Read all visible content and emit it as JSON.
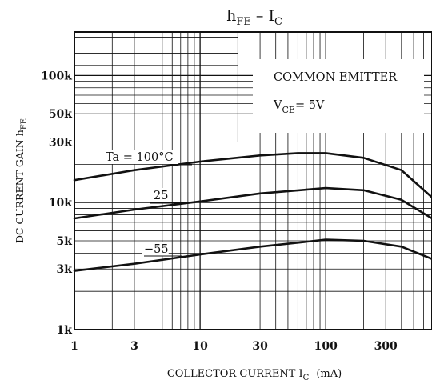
{
  "chart_data": {
    "type": "line",
    "title": {
      "main": "h",
      "main_sub": "FE",
      "sep": " – ",
      "second": "I",
      "second_sub": "C"
    },
    "ylabel": {
      "main": "DC CURRENT GAIN h",
      "sub": "FE"
    },
    "xlabel": {
      "main": "COLLECTOR CURRENT  I",
      "sub": "C",
      "unit": "(mA)"
    },
    "x_scale": "log",
    "y_scale": "log",
    "xlim": [
      1,
      700
    ],
    "ylim": [
      1000,
      220000
    ],
    "x_ticks": [
      {
        "value": 1,
        "label": "1"
      },
      {
        "value": 3,
        "label": "3"
      },
      {
        "value": 10,
        "label": "10"
      },
      {
        "value": 30,
        "label": "30"
      },
      {
        "value": 100,
        "label": "100"
      },
      {
        "value": 300,
        "label": "300"
      }
    ],
    "y_ticks": [
      {
        "value": 1000,
        "label": "1k"
      },
      {
        "value": 3000,
        "label": "3k"
      },
      {
        "value": 5000,
        "label": "5k"
      },
      {
        "value": 10000,
        "label": "10k"
      },
      {
        "value": 30000,
        "label": "30k"
      },
      {
        "value": 50000,
        "label": "50k"
      },
      {
        "value": 100000,
        "label": "100k"
      }
    ],
    "annotations": {
      "line1": "COMMON EMITTER",
      "line2_main": "V",
      "line2_sub": "CE",
      "line2_rest": "= 5V"
    },
    "series": [
      {
        "name": "Ta = 100°C",
        "x": [
          1,
          3,
          10,
          30,
          60,
          100,
          200,
          400,
          700
        ],
        "y": [
          15000,
          18000,
          21000,
          23500,
          24500,
          24500,
          22500,
          18000,
          11000
        ]
      },
      {
        "name": "25",
        "x": [
          1,
          3,
          10,
          30,
          100,
          200,
          400,
          700
        ],
        "y": [
          7500,
          8800,
          10200,
          11800,
          13000,
          12500,
          10500,
          7500
        ]
      },
      {
        "name": "−55",
        "x": [
          1,
          3,
          10,
          30,
          100,
          200,
          400,
          700
        ],
        "y": [
          2900,
          3300,
          3900,
          4500,
          5100,
          5000,
          4500,
          3600
        ]
      }
    ]
  }
}
